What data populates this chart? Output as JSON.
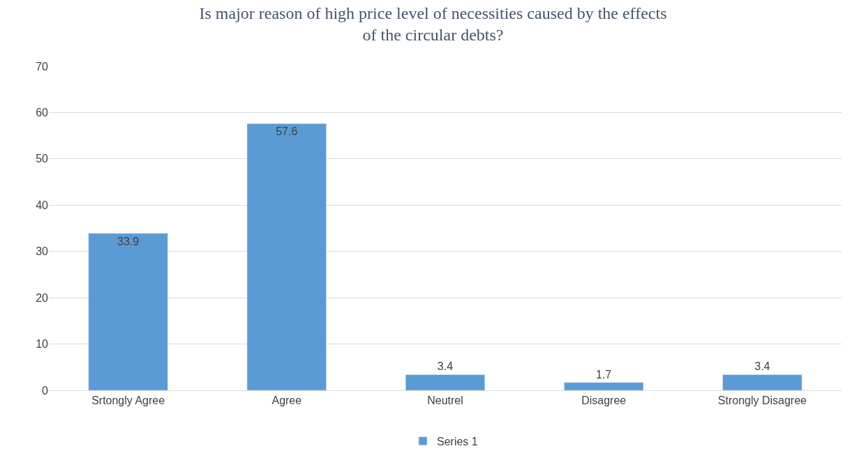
{
  "chart_data": {
    "type": "bar",
    "title": "Is major reason of high price level of necessities caused by the effects of the circular debts?",
    "categories": [
      "Srtongly Agree",
      "Agree",
      "Neutrel",
      "Disagree",
      "Strongly Disagree"
    ],
    "series": [
      {
        "name": "Series 1",
        "color": "#5b9bd5",
        "values": [
          33.9,
          57.6,
          3.4,
          1.7,
          3.4
        ]
      }
    ],
    "ylim": [
      0,
      70
    ],
    "yticks": [
      0,
      10,
      20,
      30,
      40,
      50,
      60,
      70
    ],
    "grid": "y",
    "legend": "bottom",
    "data_labels": true
  }
}
